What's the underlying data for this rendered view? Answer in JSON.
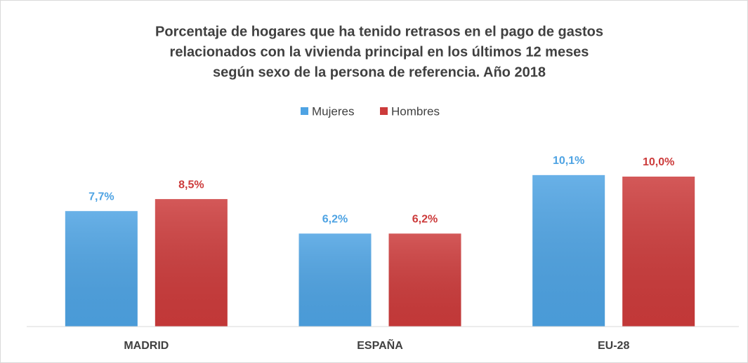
{
  "chart_data": {
    "type": "bar",
    "title": [
      "Porcentaje de hogares que ha tenido retrasos en el pago de gastos",
      "relacionados con la vivienda principal en los últimos 12 meses",
      "según sexo de la persona de referencia. Año 2018"
    ],
    "categories": [
      "MADRID",
      "ESPAÑA",
      "EU-28"
    ],
    "series": [
      {
        "name": "Mujeres",
        "color": "#4ea3e3",
        "values": [
          7.7,
          6.2,
          10.1
        ],
        "value_labels": [
          "7,7%",
          "6,2%",
          "10,1%"
        ]
      },
      {
        "name": "Hombres",
        "color": "#cc3b3b",
        "values": [
          8.5,
          6.2,
          10.0
        ],
        "value_labels": [
          "8,5%",
          "6,2%",
          "10,0%"
        ]
      }
    ],
    "legend": "top"
  }
}
